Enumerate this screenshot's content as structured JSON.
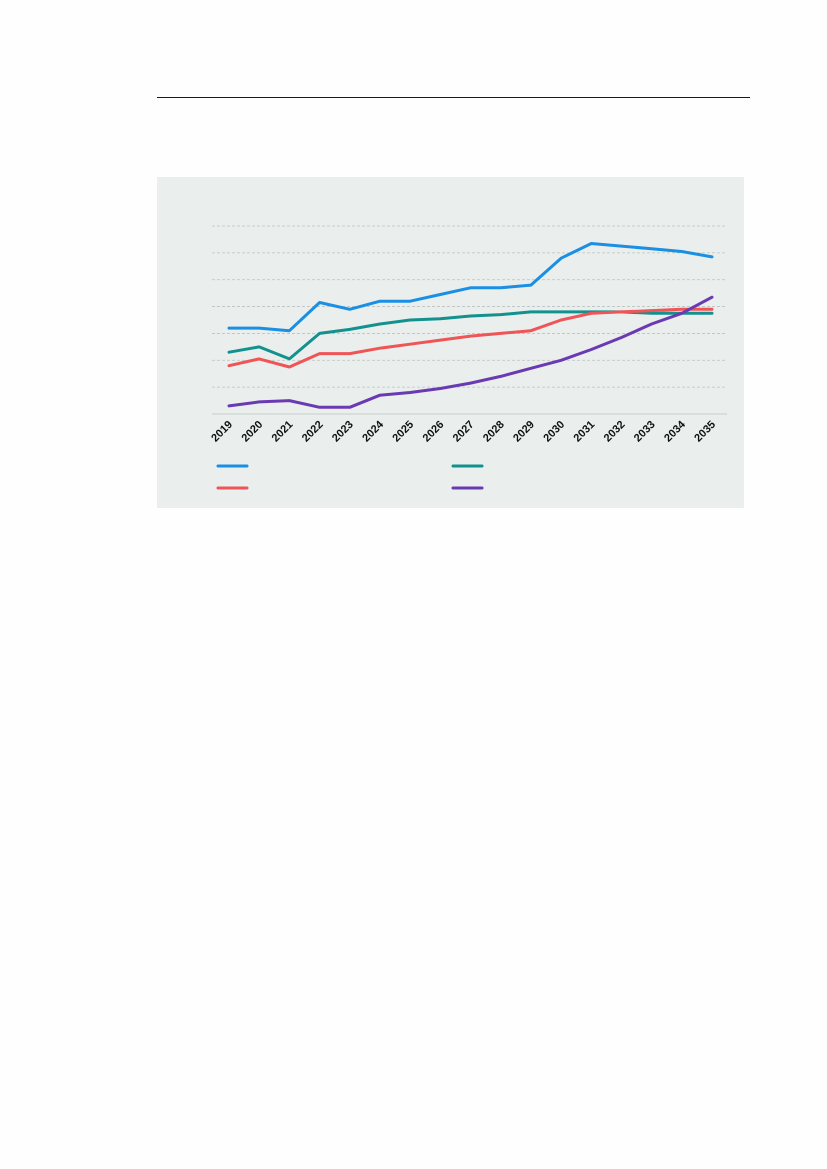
{
  "colors": {
    "blue": "#1a8fe3",
    "teal": "#13918f",
    "red": "#ef5456",
    "purple": "#6a3ab2",
    "panel_background": "#eaefed",
    "gridline": "#b9c2c0"
  },
  "chart_data": {
    "type": "line",
    "title": "",
    "xlabel": "",
    "ylabel": "",
    "x": [
      "2019",
      "2020",
      "2021",
      "2022",
      "2023",
      "2024",
      "2025",
      "2026",
      "2027",
      "2028",
      "2029",
      "2030",
      "2031",
      "2032",
      "2033",
      "2034",
      "2035"
    ],
    "ylim": [
      0,
      7
    ],
    "grid": true,
    "gridlines": [
      0,
      1,
      2,
      3,
      4,
      5,
      6,
      7
    ],
    "legend_placement": "bottom",
    "series": [
      {
        "name": "",
        "color": "blue",
        "values": [
          3.2,
          3.2,
          3.1,
          4.15,
          3.9,
          4.2,
          4.2,
          4.45,
          4.7,
          4.7,
          4.8,
          5.8,
          6.35,
          6.25,
          6.15,
          6.05,
          5.85
        ]
      },
      {
        "name": "",
        "color": "teal",
        "values": [
          2.3,
          2.5,
          2.05,
          3.0,
          3.15,
          3.35,
          3.5,
          3.55,
          3.65,
          3.7,
          3.8,
          3.8,
          3.8,
          3.8,
          3.75,
          3.75,
          3.75
        ]
      },
      {
        "name": "",
        "color": "red",
        "values": [
          1.8,
          2.05,
          1.75,
          2.25,
          2.25,
          2.45,
          2.6,
          2.75,
          2.9,
          3.0,
          3.1,
          3.5,
          3.75,
          3.8,
          3.85,
          3.9,
          3.9
        ]
      },
      {
        "name": "",
        "color": "purple",
        "values": [
          0.3,
          0.45,
          0.5,
          0.25,
          0.25,
          0.7,
          0.8,
          0.95,
          1.15,
          1.4,
          1.7,
          2.0,
          2.4,
          2.85,
          3.35,
          3.75,
          4.35
        ]
      }
    ]
  }
}
